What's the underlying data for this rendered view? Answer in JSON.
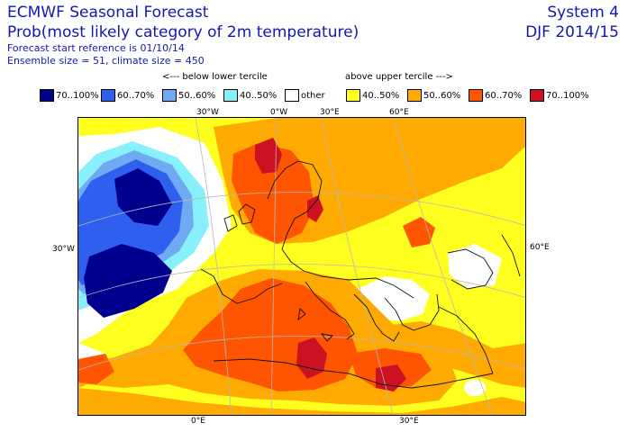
{
  "header": {
    "title": "ECMWF Seasonal Forecast",
    "subtitle": "Prob(most likely category of 2m temperature)",
    "forecast_reference": "Forecast start reference is 01/10/14",
    "ensemble_size": "Ensemble size = 51, climate size = 450",
    "system": "System 4",
    "season": "DJF 2014/15"
  },
  "legend": {
    "below_label": "<--- below lower tercile",
    "above_label": "above upper tercile --->",
    "items": [
      {
        "label": "70..100%",
        "color": "#00008f"
      },
      {
        "label": "60..70%",
        "color": "#2f5fef"
      },
      {
        "label": "50..60%",
        "color": "#6faaf2"
      },
      {
        "label": "40..50%",
        "color": "#88f0fb"
      },
      {
        "label": "other",
        "color": "#ffffff"
      },
      {
        "label": "40..50%",
        "color": "#ffff1f"
      },
      {
        "label": "50..60%",
        "color": "#ffaa00"
      },
      {
        "label": "60..70%",
        "color": "#ff5500"
      },
      {
        "label": "70..100%",
        "color": "#cc1122"
      }
    ]
  },
  "map": {
    "top_labels": [
      "30°W",
      "0°W",
      "30°E",
      "60°E"
    ],
    "left_label": "30°W",
    "right_label": "60°E",
    "bottom_labels": [
      "0°E",
      "30°E"
    ]
  }
}
